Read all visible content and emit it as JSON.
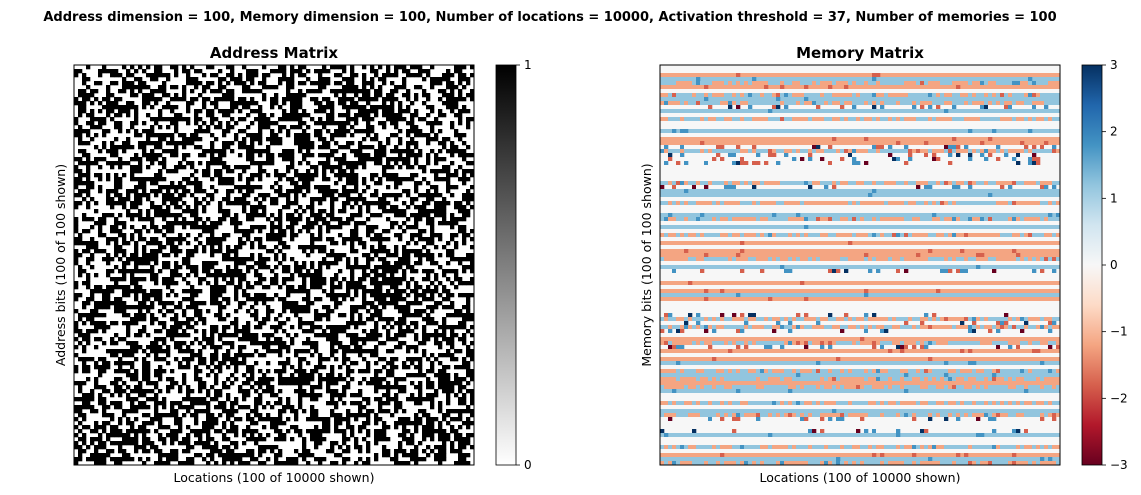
{
  "suptitle": "Address dimension = 100, Memory dimension = 100, Number of locations = 10000, Activation threshold = 37, Number of memories = 100",
  "chart_data": [
    {
      "type": "heatmap",
      "title": "Address Matrix",
      "xlabel": "Locations (100 of 10000 shown)",
      "ylabel": "Address bits (100 of 100 shown)",
      "rows": 100,
      "cols": 100,
      "value_range": [
        0,
        1
      ],
      "colormap": "gray_r",
      "colorbar_ticks": [
        "0",
        "1"
      ],
      "pattern": "random binary 0/1, roughly half of the cells set to 1"
    },
    {
      "type": "heatmap",
      "title": "Memory Matrix",
      "xlabel": "Locations (100 of 10000 shown)",
      "ylabel": "Memory bits (100 of 100 shown)",
      "rows": 100,
      "cols": 100,
      "value_range": [
        -3,
        3
      ],
      "colormap": "RdBu",
      "colorbar_ticks": [
        "3",
        "2",
        "1",
        "0",
        "−1",
        "−2",
        "−3"
      ],
      "pattern": "horizontal bands per memory bit; values mostly 0 or ±1 with sparse ±2 and ±3 entries"
    }
  ]
}
